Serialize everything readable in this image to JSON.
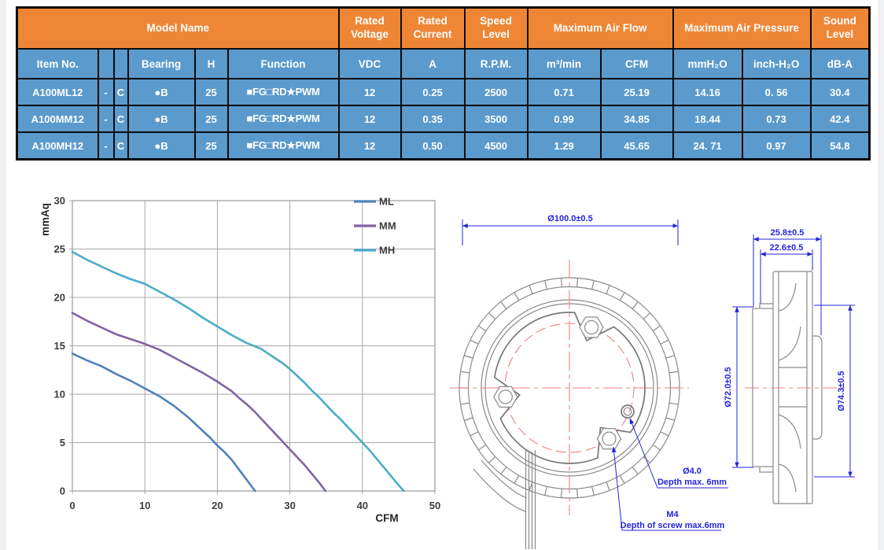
{
  "table": {
    "header_groups": {
      "model_name": "Model Name",
      "rated_voltage": "Rated Voltage",
      "rated_current": "Rated Current",
      "speed_level": "Speed Level",
      "max_air_flow": "Maximum Air Flow",
      "max_air_pressure": "Maximum Air Pressure",
      "sound_level": "Sound Level"
    },
    "columns": [
      "Item No.",
      "",
      "",
      "Bearing",
      "H",
      "Function",
      "VDC",
      "A",
      "R.P.M.",
      "m³/min",
      "CFM",
      "mmH₂O",
      "inch-H₂O",
      "dB-A"
    ],
    "rows": [
      {
        "item_no": "A100ML12",
        "sep": "-",
        "code": "C",
        "bearing": "●B",
        "h": "25",
        "function": "■FG□RD★PWM",
        "vdc": "12",
        "a": "0.25",
        "rpm": "2500",
        "m3min": "0.71",
        "cfm": "25.19",
        "mmh2o": "14.16",
        "inchh2o": "0. 56",
        "dba": "30.4"
      },
      {
        "item_no": "A100MM12",
        "sep": "-",
        "code": "C",
        "bearing": "●B",
        "h": "25",
        "function": "■FG□RD★PWM",
        "vdc": "12",
        "a": "0.35",
        "rpm": "3500",
        "m3min": "0.99",
        "cfm": "34.85",
        "mmh2o": "18.44",
        "inchh2o": "0.73",
        "dba": "42.4"
      },
      {
        "item_no": "A100MH12",
        "sep": "-",
        "code": "C",
        "bearing": "●B",
        "h": "25",
        "function": "■FG□RD★PWM",
        "vdc": "12",
        "a": "0.50",
        "rpm": "4500",
        "m3min": "1.29",
        "cfm": "45.65",
        "mmh2o": "24. 71",
        "dba": "54.8",
        "inchh2o": "0.97"
      }
    ],
    "colors": {
      "header_orange": "#ef8636",
      "cell_blue": "#5b9acc",
      "border": "#0c0c0c",
      "text": "#ffffff"
    }
  },
  "chart_data": {
    "type": "line",
    "title": "",
    "xlabel": "CFM",
    "ylabel": "mmAq",
    "xlim": [
      0,
      50
    ],
    "ylim": [
      0,
      30
    ],
    "xstep": 10,
    "ystep": 5,
    "grid": true,
    "legend_position": "top-right",
    "series": [
      {
        "name": "ML",
        "color": "#4f81bd",
        "points": [
          [
            0,
            14.2
          ],
          [
            2,
            13.5
          ],
          [
            4,
            12.9
          ],
          [
            6,
            12.1
          ],
          [
            8,
            11.4
          ],
          [
            10,
            10.6
          ],
          [
            12,
            9.8
          ],
          [
            14,
            8.8
          ],
          [
            15,
            8.2
          ],
          [
            16,
            7.6
          ],
          [
            17,
            6.9
          ],
          [
            18,
            6.2
          ],
          [
            19,
            5.5
          ],
          [
            20,
            4.7
          ],
          [
            21,
            4.0
          ],
          [
            22,
            3.2
          ],
          [
            23,
            2.2
          ],
          [
            24,
            1.2
          ],
          [
            25.2,
            0
          ]
        ]
      },
      {
        "name": "MM",
        "color": "#8064a2",
        "points": [
          [
            0,
            18.4
          ],
          [
            2,
            17.6
          ],
          [
            4,
            16.9
          ],
          [
            6,
            16.2
          ],
          [
            8,
            15.7
          ],
          [
            10,
            15.2
          ],
          [
            12,
            14.6
          ],
          [
            14,
            13.8
          ],
          [
            16,
            13.0
          ],
          [
            18,
            12.2
          ],
          [
            20,
            11.3
          ],
          [
            22,
            10.3
          ],
          [
            23,
            9.6
          ],
          [
            24,
            9.0
          ],
          [
            25,
            8.3
          ],
          [
            26,
            7.5
          ],
          [
            27,
            6.7
          ],
          [
            28,
            5.9
          ],
          [
            29,
            5.1
          ],
          [
            30,
            4.3
          ],
          [
            31,
            3.5
          ],
          [
            32,
            2.7
          ],
          [
            33,
            1.8
          ],
          [
            34,
            0.9
          ],
          [
            34.9,
            0
          ]
        ]
      },
      {
        "name": "MH",
        "color": "#4bacc6",
        "points": [
          [
            0,
            24.7
          ],
          [
            2,
            23.9
          ],
          [
            4,
            23.2
          ],
          [
            6,
            22.5
          ],
          [
            8,
            21.9
          ],
          [
            10,
            21.4
          ],
          [
            12,
            20.6
          ],
          [
            14,
            19.8
          ],
          [
            16,
            18.9
          ],
          [
            18,
            17.9
          ],
          [
            20,
            17.0
          ],
          [
            22,
            16.1
          ],
          [
            24,
            15.3
          ],
          [
            26,
            14.7
          ],
          [
            27,
            14.2
          ],
          [
            28,
            13.7
          ],
          [
            29,
            13.2
          ],
          [
            30,
            12.6
          ],
          [
            31,
            11.9
          ],
          [
            32,
            11.2
          ],
          [
            33,
            10.4
          ],
          [
            34,
            9.7
          ],
          [
            35,
            8.9
          ],
          [
            36,
            8.1
          ],
          [
            37,
            7.4
          ],
          [
            38,
            6.6
          ],
          [
            39,
            5.8
          ],
          [
            40,
            5.0
          ],
          [
            41,
            4.2
          ],
          [
            42,
            3.3
          ],
          [
            43,
            2.4
          ],
          [
            44,
            1.5
          ],
          [
            45,
            0.6
          ],
          [
            45.7,
            0
          ]
        ]
      }
    ]
  },
  "drawing": {
    "front": {
      "diameter_label": "Ø100.0±0.5"
    },
    "side": {
      "depth_label": "25.8±0.5",
      "depth2_label": "22.6±0.5",
      "left_dia_label": "Ø72.0±0.5",
      "right_dia_label": "Ø74.3±0.5"
    },
    "annotations": {
      "hole_line1": "Ø4.0",
      "hole_line2": "Depth max. 6mm",
      "screw_line1": "M4",
      "screw_line2": "Depth of screw max.6mm"
    },
    "colors": {
      "dimension_blue": "#2424dd",
      "centerline_red": "#ef8080",
      "outline_gray": "#8a8a8a"
    }
  }
}
